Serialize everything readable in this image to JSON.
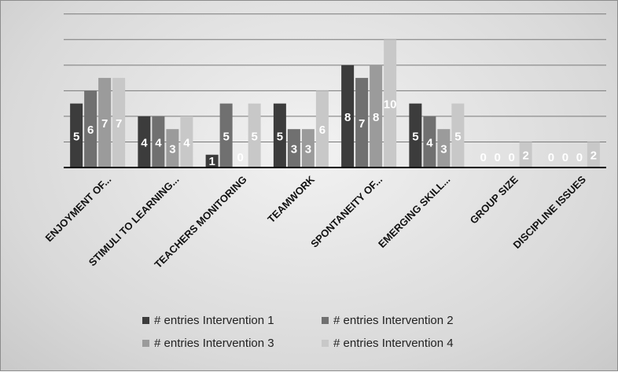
{
  "chart_data": {
    "type": "bar",
    "categories": [
      "ENJOYMENT OF...",
      "STIMULI TO LEARNING...",
      "TEACHERS MONITORING",
      "TEAMWORK",
      "SPONTANEITY OF...",
      "EMERGING SKILL...",
      "GROUP SIZE",
      "DISCIPLINE ISSUES"
    ],
    "series": [
      {
        "name": "# entries Intervention 1",
        "color": "#3c3c3c",
        "values": [
          5,
          4,
          1,
          5,
          8,
          5,
          0,
          0
        ]
      },
      {
        "name": "# entries Intervention 2",
        "color": "#707070",
        "values": [
          6,
          4,
          5,
          3,
          7,
          4,
          0,
          0
        ]
      },
      {
        "name": "# entries Intervention 3",
        "color": "#9b9b9b",
        "values": [
          7,
          3,
          0,
          3,
          8,
          3,
          0,
          0
        ]
      },
      {
        "name": "# entries  Intervention 4",
        "color": "#c8c8c8",
        "values": [
          7,
          4,
          5,
          6,
          10,
          5,
          2,
          2
        ]
      }
    ],
    "ylim": [
      0,
      10
    ],
    "grid": true,
    "legend_position": "bottom",
    "data_labels": true
  }
}
